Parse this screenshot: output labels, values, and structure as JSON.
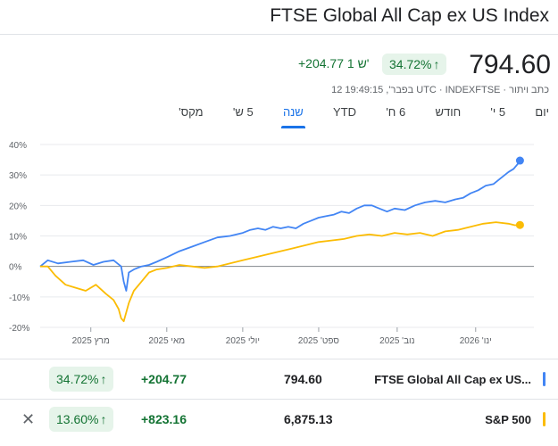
{
  "header": {
    "title": "FTSE Global All Cap ex US Index",
    "price": "794.60",
    "change_pct": "34.72%",
    "change_pct_arrow": "↑",
    "change_abs": "+204.77 1 ש'",
    "meta": "12 בפבר', 19:49:15 UTC · INDEXFTSE · כתב ויתור"
  },
  "tabs": [
    {
      "label": "יום"
    },
    {
      "label": "5 י'"
    },
    {
      "label": "חודש"
    },
    {
      "label": "6 ח'"
    },
    {
      "label": "YTD"
    },
    {
      "label": "שנה"
    },
    {
      "label": "5 ש'"
    },
    {
      "label": "מקס'"
    }
  ],
  "active_tab": "שנה",
  "chart_data": {
    "type": "line",
    "y_tick_labels": [
      "40%",
      "30%",
      "20%",
      "10%",
      "0%",
      "-10%",
      "-20%"
    ],
    "y_ticks": [
      40,
      30,
      20,
      10,
      0,
      -10,
      -20
    ],
    "ylim": [
      -20,
      40
    ],
    "x_tick_labels": [
      "מרץ 2025",
      "מאי 2025",
      "יולי 2025",
      "ספט' 2025",
      "נוב' 2025",
      "ינו' 2026"
    ],
    "x_tick_days": [
      40,
      100,
      160,
      220,
      282,
      344
    ],
    "xlim": [
      0,
      390
    ],
    "series": [
      {
        "name": "FTSE Global All Cap ex US Index",
        "color": "#4285f4",
        "points": [
          [
            0,
            0
          ],
          [
            6,
            2
          ],
          [
            14,
            1
          ],
          [
            24,
            1.5
          ],
          [
            34,
            2
          ],
          [
            42,
            0.5
          ],
          [
            50,
            1.5
          ],
          [
            58,
            2
          ],
          [
            64,
            0
          ],
          [
            66,
            -5
          ],
          [
            68,
            -8
          ],
          [
            70,
            -2
          ],
          [
            74,
            -1
          ],
          [
            80,
            0
          ],
          [
            86,
            0.5
          ],
          [
            92,
            1.5
          ],
          [
            100,
            3
          ],
          [
            110,
            5
          ],
          [
            120,
            6.5
          ],
          [
            130,
            8
          ],
          [
            140,
            9.5
          ],
          [
            150,
            10
          ],
          [
            160,
            11
          ],
          [
            166,
            12
          ],
          [
            172,
            12.5
          ],
          [
            178,
            12
          ],
          [
            184,
            13
          ],
          [
            190,
            12.5
          ],
          [
            196,
            13
          ],
          [
            202,
            12.5
          ],
          [
            208,
            14
          ],
          [
            214,
            15
          ],
          [
            220,
            16
          ],
          [
            226,
            16.5
          ],
          [
            232,
            17
          ],
          [
            238,
            18
          ],
          [
            244,
            17.5
          ],
          [
            250,
            19
          ],
          [
            256,
            20
          ],
          [
            262,
            20
          ],
          [
            268,
            19
          ],
          [
            274,
            18
          ],
          [
            280,
            19
          ],
          [
            288,
            18.5
          ],
          [
            296,
            20
          ],
          [
            304,
            21
          ],
          [
            312,
            21.5
          ],
          [
            320,
            21
          ],
          [
            328,
            22
          ],
          [
            334,
            22.5
          ],
          [
            340,
            24
          ],
          [
            346,
            25
          ],
          [
            352,
            26.5
          ],
          [
            358,
            27
          ],
          [
            364,
            29
          ],
          [
            370,
            31
          ],
          [
            374,
            32
          ],
          [
            377,
            33.5
          ],
          [
            379,
            34.72
          ]
        ]
      },
      {
        "name": "S&P 500",
        "color": "#fbbc04",
        "points": [
          [
            0,
            0
          ],
          [
            6,
            0
          ],
          [
            12,
            -3
          ],
          [
            20,
            -6
          ],
          [
            28,
            -7
          ],
          [
            36,
            -8
          ],
          [
            44,
            -6
          ],
          [
            52,
            -9
          ],
          [
            58,
            -11
          ],
          [
            62,
            -14
          ],
          [
            64,
            -17
          ],
          [
            66,
            -18
          ],
          [
            70,
            -12
          ],
          [
            74,
            -8
          ],
          [
            80,
            -5
          ],
          [
            86,
            -2
          ],
          [
            92,
            -1
          ],
          [
            100,
            -0.5
          ],
          [
            110,
            0.5
          ],
          [
            120,
            0
          ],
          [
            130,
            -0.5
          ],
          [
            140,
            0
          ],
          [
            150,
            1
          ],
          [
            160,
            2
          ],
          [
            170,
            3
          ],
          [
            180,
            4
          ],
          [
            190,
            5
          ],
          [
            200,
            6
          ],
          [
            210,
            7
          ],
          [
            220,
            8
          ],
          [
            230,
            8.5
          ],
          [
            240,
            9
          ],
          [
            250,
            10
          ],
          [
            260,
            10.5
          ],
          [
            270,
            10
          ],
          [
            280,
            11
          ],
          [
            290,
            10.5
          ],
          [
            300,
            11
          ],
          [
            310,
            10
          ],
          [
            320,
            11.5
          ],
          [
            330,
            12
          ],
          [
            340,
            13
          ],
          [
            350,
            14
          ],
          [
            360,
            14.5
          ],
          [
            370,
            14
          ],
          [
            375,
            13.5
          ],
          [
            379,
            13.6
          ]
        ]
      }
    ]
  },
  "comparison": [
    {
      "name": "FTSE Global All Cap ex US...",
      "value": "794.60",
      "change": "+204.77",
      "pct": "34.72%",
      "arrow": "↑",
      "color": "#4285f4",
      "close": ""
    },
    {
      "name": "S&P 500",
      "value": "6,875.13",
      "change": "+823.16",
      "pct": "13.60%",
      "arrow": "↑",
      "color": "#fbbc04",
      "close": "✕"
    }
  ]
}
